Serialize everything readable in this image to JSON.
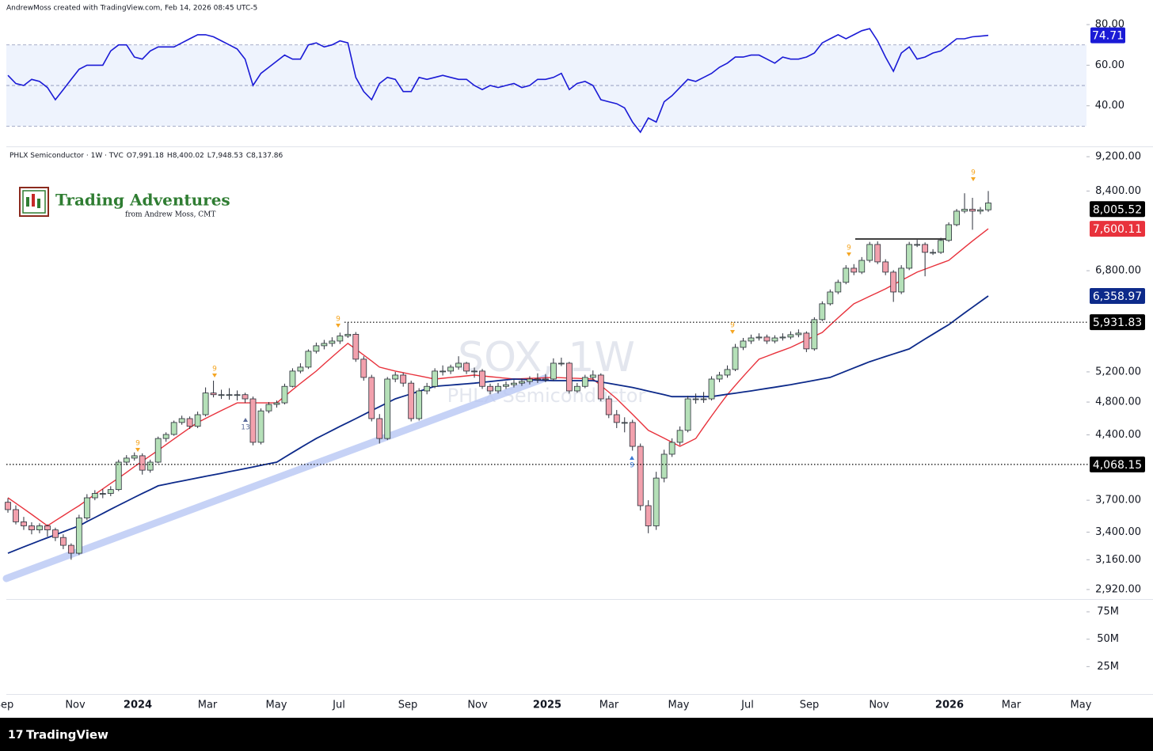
{
  "header": "AndrewMoss created with TradingView.com, Feb 14, 2026 08:45 UTC-5",
  "footer": "TradingView",
  "chart_data": {
    "type": "candlestick",
    "legend": "PHLX Semiconductor · 1W · TVC",
    "legend_values": [
      "O7,991.18",
      "H8,400.02",
      "L7,948.53",
      "C8,137.86"
    ],
    "watermark": "SOX, 1W",
    "watermark_subtitle": "PHLX Semiconductor",
    "brand": "Trading Adventures",
    "brand_subtitle": "from Andrew Moss, CMT",
    "x_labels": [
      "Sep",
      "Nov",
      "2024",
      "Mar",
      "May",
      "Jul",
      "Sep",
      "Nov",
      "2025",
      "Mar",
      "May",
      "Jul",
      "Sep",
      "Nov",
      "2026",
      "Mar",
      "May"
    ],
    "up_color": "#b5e0b8",
    "down_color": "#f2a1ad",
    "log_scale": true,
    "ylim": [
      2847,
      9435
    ],
    "yticks": [
      {
        "value": 9200,
        "label": "9,200.00"
      },
      {
        "value": 8400,
        "label": "8,400.00"
      },
      {
        "value": 6800,
        "label": "6,800.00"
      },
      {
        "value": 5200,
        "label": "5,200.00"
      },
      {
        "value": 4800,
        "label": "4,800.00"
      },
      {
        "value": 4400,
        "label": "4,400.00"
      },
      {
        "value": 3700,
        "label": "3,700.00"
      },
      {
        "value": 3400,
        "label": "3,400.00"
      },
      {
        "value": 3160,
        "label": "3,160.00"
      },
      {
        "value": 2920,
        "label": "2,920.00"
      }
    ],
    "candles": [
      [
        3680,
        3720,
        3580,
        3609
      ],
      [
        3609,
        3650,
        3470,
        3494
      ],
      [
        3494,
        3540,
        3420,
        3457
      ],
      [
        3457,
        3490,
        3380,
        3420
      ],
      [
        3420,
        3480,
        3390,
        3457
      ],
      [
        3457,
        3470,
        3360,
        3420
      ],
      [
        3420,
        3440,
        3320,
        3352
      ],
      [
        3352,
        3380,
        3250,
        3283
      ],
      [
        3283,
        3300,
        3160,
        3215
      ],
      [
        3215,
        3560,
        3200,
        3530
      ],
      [
        3530,
        3760,
        3510,
        3724
      ],
      [
        3724,
        3800,
        3700,
        3767
      ],
      [
        3767,
        3810,
        3720,
        3767
      ],
      [
        3767,
        3840,
        3740,
        3806
      ],
      [
        3806,
        4120,
        3790,
        4093
      ],
      [
        4093,
        4170,
        4060,
        4137
      ],
      [
        4137,
        4200,
        4110,
        4163
      ],
      [
        4163,
        4190,
        3960,
        4007
      ],
      [
        4007,
        4120,
        3980,
        4093
      ],
      [
        4093,
        4380,
        4080,
        4358
      ],
      [
        4358,
        4430,
        4320,
        4405
      ],
      [
        4405,
        4570,
        4390,
        4547
      ],
      [
        4547,
        4630,
        4520,
        4594
      ],
      [
        4594,
        4620,
        4470,
        4501
      ],
      [
        4501,
        4680,
        4480,
        4642
      ],
      [
        4642,
        4990,
        4620,
        4917
      ],
      [
        4917,
        5080,
        4860,
        4895
      ],
      [
        4895,
        4960,
        4840,
        4895
      ],
      [
        4895,
        4980,
        4830,
        4895
      ],
      [
        4895,
        4950,
        4820,
        4895
      ],
      [
        4895,
        4920,
        4790,
        4841
      ],
      [
        4841,
        4870,
        4280,
        4314
      ],
      [
        4314,
        4720,
        4290,
        4689
      ],
      [
        4689,
        4800,
        4660,
        4770
      ],
      [
        4770,
        4820,
        4730,
        4790
      ],
      [
        4790,
        5040,
        4770,
        5004
      ],
      [
        5004,
        5250,
        4990,
        5211
      ],
      [
        5211,
        5320,
        5180,
        5266
      ],
      [
        5266,
        5520,
        5240,
        5492
      ],
      [
        5492,
        5620,
        5460,
        5573
      ],
      [
        5573,
        5660,
        5520,
        5608
      ],
      [
        5608,
        5700,
        5560,
        5643
      ],
      [
        5643,
        5770,
        5600,
        5720
      ],
      [
        5720,
        5932,
        5690,
        5745
      ],
      [
        5745,
        5780,
        5340,
        5378
      ],
      [
        5378,
        5420,
        5080,
        5124
      ],
      [
        5124,
        5160,
        4560,
        4594
      ],
      [
        4594,
        4650,
        4300,
        4358
      ],
      [
        4358,
        5130,
        4340,
        5102
      ],
      [
        5102,
        5200,
        5060,
        5156
      ],
      [
        5156,
        5190,
        5000,
        5047
      ],
      [
        5047,
        5080,
        4560,
        4594
      ],
      [
        4594,
        4980,
        4570,
        4944
      ],
      [
        4944,
        5050,
        4900,
        5004
      ],
      [
        5004,
        5250,
        4980,
        5211
      ],
      [
        5211,
        5290,
        5150,
        5211
      ],
      [
        5211,
        5300,
        5170,
        5266
      ],
      [
        5266,
        5420,
        5230,
        5321
      ],
      [
        5321,
        5340,
        5170,
        5211
      ],
      [
        5211,
        5260,
        5120,
        5211
      ],
      [
        5211,
        5240,
        4970,
        5004
      ],
      [
        5004,
        5040,
        4900,
        4944
      ],
      [
        4944,
        5050,
        4910,
        5004
      ],
      [
        5004,
        5070,
        4970,
        5026
      ],
      [
        5026,
        5090,
        4990,
        5047
      ],
      [
        5047,
        5110,
        5010,
        5069
      ],
      [
        5069,
        5140,
        5030,
        5102
      ],
      [
        5102,
        5180,
        5050,
        5102
      ],
      [
        5102,
        5170,
        5060,
        5102
      ],
      [
        5102,
        5390,
        5080,
        5321
      ],
      [
        5321,
        5400,
        5280,
        5321
      ],
      [
        5321,
        5340,
        4910,
        4944
      ],
      [
        4944,
        5050,
        4920,
        5004
      ],
      [
        5004,
        5160,
        4980,
        5124
      ],
      [
        5124,
        5220,
        5090,
        5156
      ],
      [
        5156,
        5180,
        4810,
        4841
      ],
      [
        4841,
        4880,
        4600,
        4642
      ],
      [
        4642,
        4700,
        4480,
        4547
      ],
      [
        4547,
        4610,
        4430,
        4547
      ],
      [
        4547,
        4580,
        4220,
        4268
      ],
      [
        4268,
        4300,
        3600,
        3647
      ],
      [
        3647,
        3700,
        3390,
        3457
      ],
      [
        3457,
        3990,
        3420,
        3924
      ],
      [
        3924,
        4230,
        3880,
        4180
      ],
      [
        4180,
        4360,
        4150,
        4314
      ],
      [
        4314,
        4500,
        4280,
        4453
      ],
      [
        4453,
        4880,
        4430,
        4841
      ],
      [
        4841,
        4910,
        4780,
        4841
      ],
      [
        4841,
        4930,
        4790,
        4841
      ],
      [
        4841,
        5140,
        4820,
        5102
      ],
      [
        5102,
        5200,
        5060,
        5156
      ],
      [
        5156,
        5290,
        5120,
        5233
      ],
      [
        5233,
        5600,
        5210,
        5549
      ],
      [
        5549,
        5690,
        5510,
        5643
      ],
      [
        5643,
        5740,
        5600,
        5690
      ],
      [
        5690,
        5760,
        5650,
        5703
      ],
      [
        5703,
        5740,
        5600,
        5643
      ],
      [
        5643,
        5730,
        5610,
        5690
      ],
      [
        5690,
        5760,
        5650,
        5703
      ],
      [
        5703,
        5790,
        5670,
        5739
      ],
      [
        5739,
        5820,
        5700,
        5763
      ],
      [
        5763,
        5790,
        5480,
        5527
      ],
      [
        5527,
        6010,
        5500,
        5973
      ],
      [
        5973,
        6270,
        5950,
        6229
      ],
      [
        6229,
        6470,
        6200,
        6427
      ],
      [
        6427,
        6640,
        6390,
        6593
      ],
      [
        6593,
        6900,
        6560,
        6845
      ],
      [
        6845,
        6920,
        6720,
        6774
      ],
      [
        6774,
        7050,
        6740,
        6989
      ],
      [
        6989,
        7340,
        6950,
        7290
      ],
      [
        7290,
        7350,
        6920,
        6961
      ],
      [
        6961,
        7010,
        6720,
        6774
      ],
      [
        6774,
        6810,
        6260,
        6427
      ],
      [
        6427,
        6900,
        6390,
        6845
      ],
      [
        6845,
        7340,
        6810,
        7290
      ],
      [
        7290,
        7380,
        7240,
        7290
      ],
      [
        7290,
        7330,
        6700,
        7139
      ],
      [
        7139,
        7200,
        7090,
        7139
      ],
      [
        7139,
        7420,
        7110,
        7369
      ],
      [
        7369,
        7730,
        7340,
        7682
      ],
      [
        7682,
        8010,
        7650,
        7963
      ],
      [
        7963,
        8350,
        7920,
        8005
      ],
      [
        8005,
        8250,
        7580,
        7963
      ],
      [
        7963,
        8050,
        7900,
        7991.18
      ],
      [
        7991.18,
        8400.02,
        7948.53,
        8137.86
      ]
    ],
    "series": [
      {
        "color": "#e8323c",
        "values": [
          3724,
          3671,
          3617,
          3564,
          3510,
          3457,
          3505,
          3552,
          3600,
          3647,
          3702,
          3758,
          3813,
          3869,
          3924,
          3984,
          4044,
          4103,
          4163,
          4223,
          4288,
          4353,
          4417,
          4482,
          4547,
          4596,
          4644,
          4693,
          4741,
          4790,
          4790,
          4790,
          4790,
          4790,
          4790,
          4874,
          4958,
          5043,
          5127,
          5211,
          5310,
          5409,
          5509,
          5608,
          5523,
          5437,
          5352,
          5266,
          5239,
          5211,
          5189,
          5167,
          5146,
          5124,
          5102,
          5113,
          5124,
          5134,
          5145,
          5156,
          5145,
          5134,
          5124,
          5113,
          5102,
          5106,
          5111,
          5115,
          5120,
          5124,
          5120,
          5115,
          5111,
          5106,
          5102,
          5015,
          4928,
          4841,
          4744,
          4647,
          4550,
          4453,
          4407,
          4361,
          4314,
          4268,
          4313,
          4358,
          4492,
          4627,
          4761,
          4895,
          5016,
          5137,
          5257,
          5378,
          5421,
          5464,
          5506,
          5549,
          5605,
          5661,
          5717,
          5773,
          5887,
          6001,
          6115,
          6229,
          6292,
          6354,
          6417,
          6480,
          6554,
          6627,
          6701,
          6774,
          6828,
          6882,
          6935,
          6989,
          7111,
          7233,
          7356,
          7478,
          7600.11
        ]
      },
      {
        "color": "#0d2a8a",
        "values": [
          3215,
          3242,
          3269,
          3296,
          3323,
          3350,
          3376,
          3403,
          3430,
          3457,
          3496,
          3534,
          3573,
          3612,
          3651,
          3689,
          3728,
          3767,
          3805,
          3844,
          3860,
          3877,
          3893,
          3909,
          3926,
          3942,
          3958,
          3974,
          3991,
          4007,
          4024,
          4041,
          4059,
          4076,
          4093,
          4146,
          4199,
          4252,
          4305,
          4358,
          4405,
          4452,
          4500,
          4547,
          4594,
          4643,
          4693,
          4742,
          4792,
          4841,
          4874,
          4906,
          4939,
          4971,
          5004,
          5013,
          5021,
          5030,
          5038,
          5047,
          5058,
          5069,
          5080,
          5091,
          5102,
          5098,
          5093,
          5089,
          5084,
          5080,
          5080,
          5080,
          5080,
          5080,
          5080,
          5062,
          5044,
          5026,
          5008,
          4990,
          4966,
          4942,
          4918,
          4894,
          4870,
          4870,
          4870,
          4870,
          4870,
          4870,
          4885,
          4900,
          4914,
          4929,
          4944,
          4960,
          4977,
          4993,
          5010,
          5026,
          5046,
          5065,
          5085,
          5104,
          5124,
          5168,
          5211,
          5255,
          5298,
          5342,
          5379,
          5416,
          5453,
          5490,
          5527,
          5600,
          5673,
          5747,
          5820,
          5893,
          5986,
          6079,
          6172,
          6266,
          6358.97
        ]
      }
    ],
    "price_labels": [
      {
        "value": 8005.52,
        "label": "8,005.52",
        "color": "#000000",
        "dotted": false
      },
      {
        "value": 7600.11,
        "label": "7,600.11",
        "color": "#e8323c",
        "dotted": false
      },
      {
        "value": 6358.97,
        "label": "6,358.97",
        "color": "#0d2a8a",
        "dotted": false
      },
      {
        "value": 5931.83,
        "label": "5,931.83",
        "color": "#000000",
        "dotted": true
      },
      {
        "value": 4068.15,
        "label": "4,068.15",
        "color": "#000000",
        "dotted": true
      }
    ],
    "annotations": [
      {
        "text": "9",
        "color": "#f5a623"
      },
      {
        "text": "9",
        "color": "#f5a623"
      },
      {
        "text": "9",
        "color": "#f5a623"
      },
      {
        "text": "13",
        "color": "#5b6b9a"
      },
      {
        "text": "9",
        "color": "#3d7ad6"
      },
      {
        "text": "9",
        "color": "#f5a623"
      },
      {
        "text": "9",
        "color": "#f5a623"
      },
      {
        "text": "9",
        "color": "#f5a623"
      }
    ],
    "rsi": {
      "type": "line",
      "color": "#1a1ad6",
      "ylim": [
        20,
        89
      ],
      "yticks": [
        {
          "value": 80,
          "label": "80.00"
        },
        {
          "value": 60,
          "label": "60.00"
        },
        {
          "value": 40,
          "label": "40.00"
        }
      ],
      "levels": [
        70,
        50,
        30
      ],
      "values": [
        55,
        51,
        50,
        53,
        52,
        49,
        43,
        48,
        53,
        58,
        60,
        60,
        60,
        67,
        70,
        70,
        64,
        63,
        67,
        69,
        69,
        69,
        71,
        73,
        75,
        75,
        74,
        72,
        70,
        68,
        63,
        50,
        56,
        59,
        62,
        65,
        63,
        63,
        70,
        71,
        69,
        70,
        72,
        71,
        54,
        47,
        43,
        51,
        54,
        53,
        47,
        47,
        54,
        53,
        54,
        55,
        54,
        53,
        53,
        50,
        48,
        50,
        49,
        50,
        51,
        49,
        50,
        53,
        53,
        54,
        56,
        48,
        51,
        52,
        50,
        43,
        42,
        41,
        39,
        32,
        27,
        34,
        32,
        42,
        45,
        49,
        53,
        52,
        54,
        56,
        59,
        61,
        64,
        64,
        65,
        65,
        63,
        61,
        64,
        63,
        63,
        64,
        66,
        71,
        73,
        75,
        73,
        75,
        77,
        78,
        72,
        64,
        57,
        66,
        69,
        63,
        64,
        66,
        67,
        70,
        73,
        73,
        74,
        74.3,
        74.71
      ],
      "value_label": {
        "value": 74.71,
        "label": "74.71"
      }
    },
    "volume": {
      "ylim": [
        0,
        86600000
      ],
      "yticks": [
        {
          "value": 75000000,
          "label": "75M"
        },
        {
          "value": 50000000,
          "label": "50M"
        },
        {
          "value": 25000000,
          "label": "25M"
        }
      ]
    }
  }
}
